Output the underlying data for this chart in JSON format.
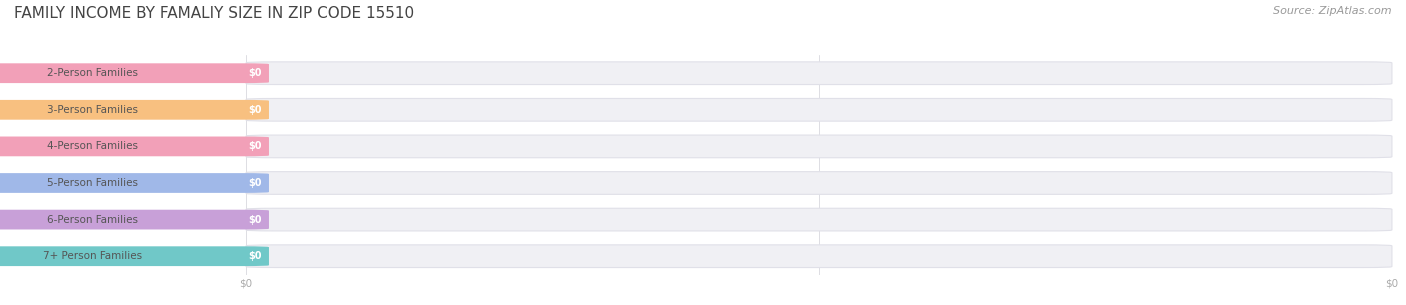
{
  "title": "FAMILY INCOME BY FAMALIY SIZE IN ZIP CODE 15510",
  "source": "Source: ZipAtlas.com",
  "categories": [
    "2-Person Families",
    "3-Person Families",
    "4-Person Families",
    "5-Person Families",
    "6-Person Families",
    "7+ Person Families"
  ],
  "values": [
    0,
    0,
    0,
    0,
    0,
    0
  ],
  "bar_colors": [
    "#f2a0b8",
    "#f8c080",
    "#f2a0b8",
    "#a0b8e8",
    "#c8a0d8",
    "#70c8c8"
  ],
  "label_color": "#555555",
  "value_label_color": "#ffffff",
  "background_color": "#ffffff",
  "bar_bg_color": "#f0f0f4",
  "bar_bg_edge_color": "#e0e0e8",
  "title_color": "#444444",
  "source_color": "#999999",
  "title_fontsize": 11,
  "label_fontsize": 7.5,
  "value_fontsize": 7,
  "source_fontsize": 8,
  "xtick_fontsize": 7.5,
  "xtick_color": "#aaaaaa"
}
